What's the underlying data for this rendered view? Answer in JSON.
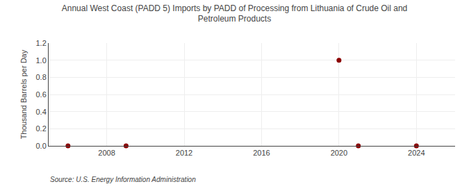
{
  "chart_data": {
    "type": "scatter",
    "title": "Annual West Coast (PADD 5) Imports by PADD of Processing from Lithuania of Crude Oil and\nPetroleum Products",
    "ylabel": "Thousand Barrels per Day",
    "annotations": [
      "Source: U.S. Energy Information Administration"
    ],
    "x": [
      2006,
      2009,
      2020,
      2021,
      2024
    ],
    "values": [
      0.0,
      0.0,
      1.0,
      0.0,
      0.0
    ],
    "color": "#8b0000",
    "xlim": [
      2005,
      2026
    ],
    "xticks": [
      2008,
      2012,
      2016,
      2020,
      2024
    ],
    "ylim": [
      0.0,
      1.2
    ],
    "yticks": [
      {
        "value": 0.0,
        "label": "0.0"
      },
      0.2,
      0.4,
      0.6,
      0.8,
      {
        "value": 1.0,
        "label": "1.0"
      },
      1.2
    ],
    "grid": true
  }
}
